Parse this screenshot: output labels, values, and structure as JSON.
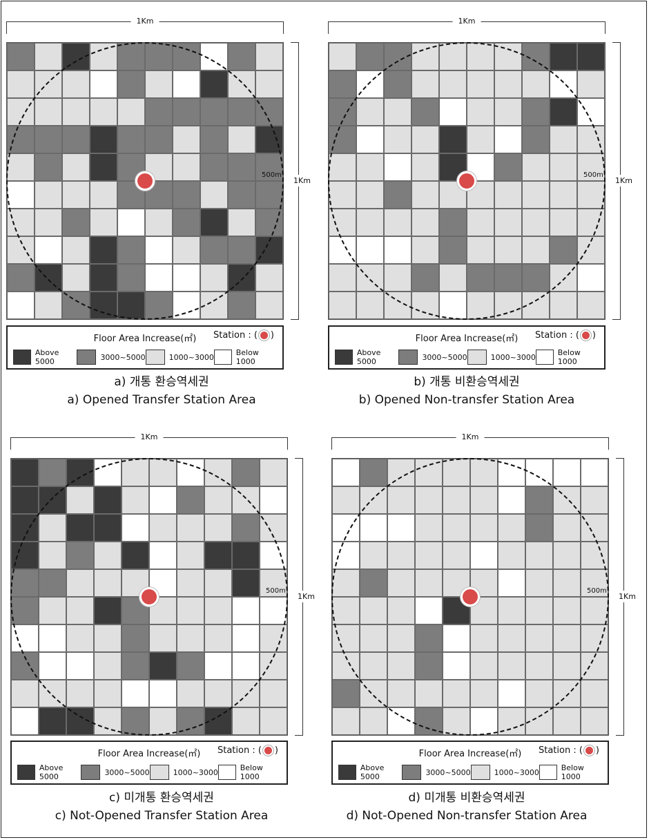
{
  "colors": {
    "dark": "#3a3a3a",
    "mid": "#7d7d7d",
    "light": "#e0e0e0",
    "white": "#ffffff",
    "station": "#d94a4a"
  },
  "common": {
    "top_label": "1Km",
    "right_label": "1Km",
    "radius_label": "500m",
    "legend_title": "Floor Area Increase(㎡)",
    "legend_station_prefix": "Station : (",
    "legend_station_suffix": ")",
    "legend_items": [
      "Above 5000",
      "3000~5000",
      "1000~3000",
      "Below 1000"
    ]
  },
  "panels": [
    {
      "caption_ko": "a) 개통 환승역세권",
      "caption_en": "a) Opened Transfer Station Area",
      "grid": [
        "MLDLMMMWML",
        "LLLWMLWDLL",
        "LLLLLMMMMM",
        "MMMDMMLMLD",
        "LMLDMLLMMM",
        "WLLLMMMLMM",
        "LLMLWLMDLM",
        "LWLDMWLMMD",
        "MDLDMWWLDL",
        "WLMDDMWLML"
      ]
    },
    {
      "caption_ko": "b) 개통 비환승역세권",
      "caption_en": "b) Opened Non-transfer Station Area",
      "grid": [
        "LMMLLLLMDD",
        "MWMLLLLLWL",
        "MLLMWLLMDW",
        "MWLLDLWMLL",
        "LLWLDWMLLL",
        "LLMLLLLLLL",
        "LLLLMLLLLL",
        "WWWLMLLLML",
        "LLLMLMMMLW",
        "LLLLWLLLLL"
      ]
    },
    {
      "caption_ko": "c) 미개통 환승역세권",
      "caption_en": "c) Not-Opened Transfer Station Area",
      "grid": [
        "DMDWLLWLML",
        "DDLDLWMLLW",
        "DLDDWLLLML",
        "DLMLDWLDDW",
        "MMLLLWLLDL",
        "MLLDMLLLWW",
        "WWLLMLLLWL",
        "MWWLMDMWWL",
        "LLLLWWLLLL",
        "WDDLMLMDLL"
      ]
    },
    {
      "caption_ko": "d) 미개통 비환승역세권",
      "caption_en": "d) Not-Opened Non-transfer Station Area",
      "grid": [
        "WMLLLLWWWW",
        "LLLLLLWMLL",
        "WWWLLLLMLL",
        "WLLLLWLLLL",
        "LMLLLLWLLL",
        "LLLWDLLLLL",
        "LLLMWLLLLL",
        "LLLMWLLLLL",
        "MLLLLLWLLL",
        "LLWMLWLLLL"
      ]
    }
  ]
}
